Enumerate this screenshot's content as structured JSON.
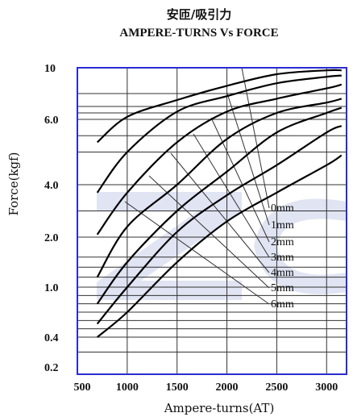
{
  "chart_data": {
    "type": "line",
    "title": "安匝/吸引力",
    "subtitle": "AMPERE-TURNS Vs FORCE",
    "xlabel": "Ampere-turns(AT)",
    "ylabel": "Force(kgf)",
    "xlim": [
      500,
      3200
    ],
    "x_ticks": [
      "500",
      "1000",
      "1500",
      "2000",
      "2500",
      "3000"
    ],
    "y_ticks": [
      "10",
      "6.0",
      "4.0",
      "2.0",
      "1.0",
      "0.4",
      "0.2"
    ],
    "grid": true,
    "watermark": "ZC",
    "series": [
      {
        "name": "0mm",
        "x": [
          700,
          1000,
          1500,
          2000,
          2500,
          3000,
          3150
        ],
        "y": [
          5.3,
          6.2,
          7.5,
          8.6,
          9.5,
          9.8,
          9.8
        ]
      },
      {
        "name": "1mm",
        "x": [
          700,
          1000,
          1500,
          2000,
          2500,
          3000,
          3150
        ],
        "y": [
          3.7,
          5.0,
          6.6,
          7.8,
          8.8,
          9.3,
          9.4
        ]
      },
      {
        "name": "2mm",
        "x": [
          700,
          1000,
          1500,
          2000,
          2500,
          3000,
          3150
        ],
        "y": [
          2.1,
          3.7,
          5.3,
          6.6,
          7.6,
          8.4,
          8.7
        ]
      },
      {
        "name": "3mm",
        "x": [
          700,
          1000,
          1500,
          2000,
          2500,
          3000,
          3150
        ],
        "y": [
          1.2,
          2.4,
          4.0,
          5.4,
          6.5,
          7.3,
          7.6
        ]
      },
      {
        "name": "4mm",
        "x": [
          700,
          1000,
          1500,
          2000,
          2500,
          3000,
          3150
        ],
        "y": [
          0.8,
          1.5,
          3.0,
          4.4,
          5.6,
          6.5,
          6.9
        ]
      },
      {
        "name": "5mm",
        "x": [
          700,
          1000,
          1500,
          2000,
          2500,
          3000,
          3150
        ],
        "y": [
          0.56,
          1.0,
          2.2,
          3.6,
          4.6,
          5.6,
          5.8
        ]
      },
      {
        "name": "6mm",
        "x": [
          700,
          1000,
          1500,
          2000,
          2500,
          3000,
          3150
        ],
        "y": [
          0.4,
          0.7,
          1.5,
          2.6,
          3.7,
          4.6,
          4.9
        ]
      }
    ]
  }
}
